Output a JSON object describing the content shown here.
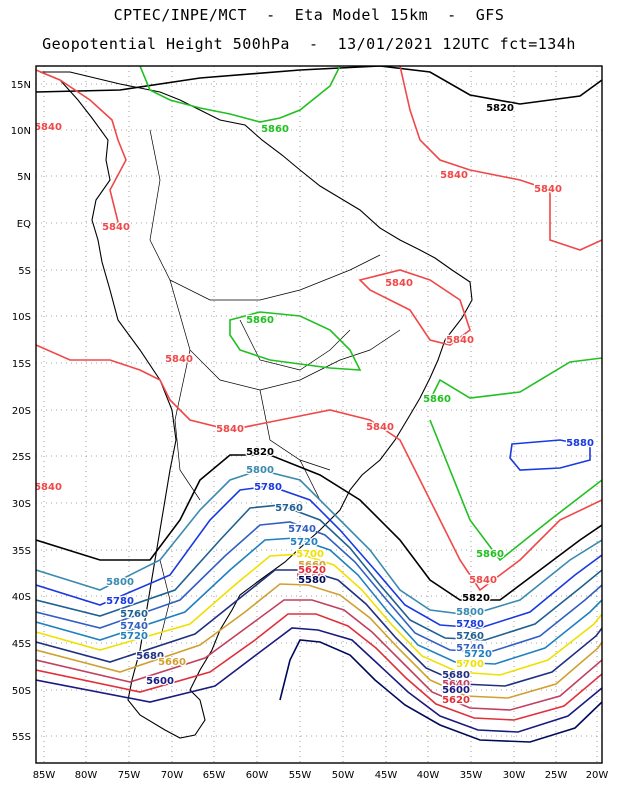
{
  "header": {
    "line1": "CPTEC/INPE/MCT  -  Eta Model 15km  -  GFS",
    "line2": "Geopotential Height 500hPa  -  13/01/2021 12UTC fct=134h"
  },
  "map": {
    "lat_ticks": [
      "15N",
      "10N",
      "5N",
      "EQ",
      "5S",
      "10S",
      "15S",
      "20S",
      "25S",
      "30S",
      "35S",
      "40S",
      "45S",
      "50S",
      "55S"
    ],
    "lon_ticks": [
      "85W",
      "80W",
      "75W",
      "70W",
      "65W",
      "60W",
      "55W",
      "50W",
      "45W",
      "40W",
      "35W",
      "30W",
      "25W",
      "20W"
    ],
    "grid": "dotted",
    "contour_colors": {
      "5580": "#000a5a",
      "5600": "#1a1a80",
      "5620": "#e0303a",
      "5640": "#c04060",
      "5660": "#d0a030",
      "5680": "#203080",
      "5700": "#f0e000",
      "5720": "#2080c0",
      "5740": "#3060c0",
      "5760": "#206090",
      "5780": "#1a3ae0",
      "5800": "#3a8ab0",
      "5820": "#000000",
      "5840": "#f04848",
      "5860": "#20c020",
      "5880": "#1a3ae0"
    },
    "contour_labels": [
      {
        "text": "5820",
        "key": "5820"
      },
      {
        "text": "5820",
        "key": "5820"
      },
      {
        "text": "5820",
        "key": "5820"
      },
      {
        "text": "5860",
        "key": "5860"
      },
      {
        "text": "5860",
        "key": "5860"
      },
      {
        "text": "5860",
        "key": "5860"
      },
      {
        "text": "5860",
        "key": "5860"
      },
      {
        "text": "5880",
        "key": "5880"
      },
      {
        "text": "5840",
        "key": "5840"
      },
      {
        "text": "5840",
        "key": "5840"
      },
      {
        "text": "5840",
        "key": "5840"
      },
      {
        "text": "5840",
        "key": "5840"
      },
      {
        "text": "5840",
        "key": "5840"
      },
      {
        "text": "5840",
        "key": "5840"
      },
      {
        "text": "5840",
        "key": "5840"
      },
      {
        "text": "5840",
        "key": "5840"
      },
      {
        "text": "5840",
        "key": "5840"
      },
      {
        "text": "5840",
        "key": "5840"
      },
      {
        "text": "5840",
        "key": "5840"
      },
      {
        "text": "5800",
        "key": "5800"
      },
      {
        "text": "5800",
        "key": "5800"
      },
      {
        "text": "5800",
        "key": "5800"
      },
      {
        "text": "5780",
        "key": "5780"
      },
      {
        "text": "5780",
        "key": "5780"
      },
      {
        "text": "5780",
        "key": "5780"
      },
      {
        "text": "5760",
        "key": "5760"
      },
      {
        "text": "5760",
        "key": "5760"
      },
      {
        "text": "5760",
        "key": "5760"
      },
      {
        "text": "5740",
        "key": "5740"
      },
      {
        "text": "5740",
        "key": "5740"
      },
      {
        "text": "5740",
        "key": "5740"
      },
      {
        "text": "5720",
        "key": "5720"
      },
      {
        "text": "5720",
        "key": "5720"
      },
      {
        "text": "5720",
        "key": "5720"
      },
      {
        "text": "5700",
        "key": "5700"
      },
      {
        "text": "5700",
        "key": "5700"
      },
      {
        "text": "5680",
        "key": "5680"
      },
      {
        "text": "5680",
        "key": "5680"
      },
      {
        "text": "5660",
        "key": "5660"
      },
      {
        "text": "5660",
        "key": "5660"
      },
      {
        "text": "5640",
        "key": "5640"
      },
      {
        "text": "5640",
        "key": "5640"
      },
      {
        "text": "5620",
        "key": "5620"
      },
      {
        "text": "5620",
        "key": "5620"
      },
      {
        "text": "5600",
        "key": "5600"
      },
      {
        "text": "5600",
        "key": "5600"
      },
      {
        "text": "5580",
        "key": "5580"
      }
    ]
  }
}
